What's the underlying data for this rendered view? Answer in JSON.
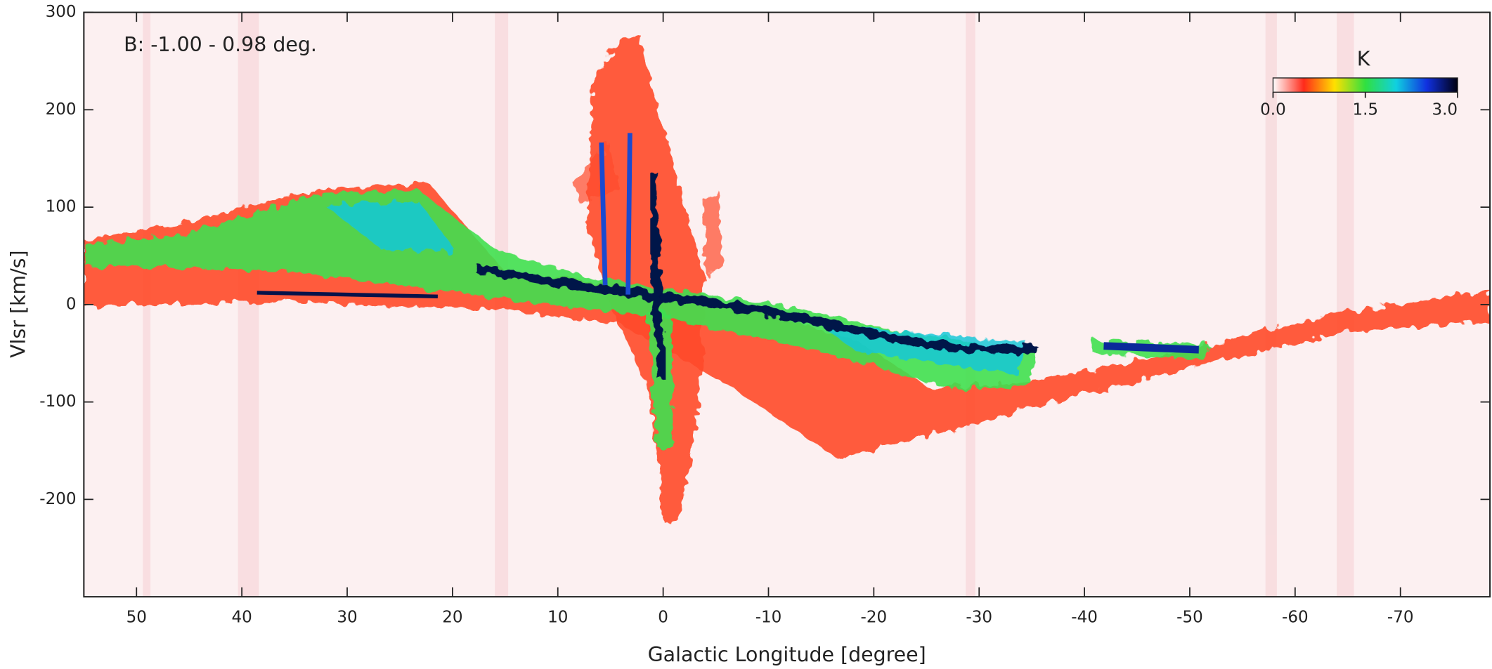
{
  "chart_data": {
    "type": "heatmap",
    "annotation": "B: -1.00 - 0.98 deg.",
    "x_label": "Galactic Longitude [degree]",
    "y_label": "Vlsr [km/s]",
    "xlim": [
      55,
      -78.5
    ],
    "xticks": [
      50,
      40,
      30,
      20,
      10,
      0,
      -10,
      -20,
      -30,
      -40,
      -50,
      -60,
      -70
    ],
    "ylim": [
      -300,
      300
    ],
    "yticks": [
      300,
      200,
      100,
      0,
      -100,
      -200
    ],
    "colorbar": {
      "title": "K",
      "lim": [
        0,
        3
      ],
      "ticks": [
        {
          "value": 0,
          "label": "0.0"
        },
        {
          "value": 1.5,
          "label": "1.5"
        },
        {
          "value": 3,
          "label": "3.0"
        }
      ],
      "colormap": [
        "#ffffff",
        "#ff2a1a",
        "#ffe000",
        "#30e040",
        "#10d0e0",
        "#1030e0",
        "#000010"
      ]
    }
  }
}
